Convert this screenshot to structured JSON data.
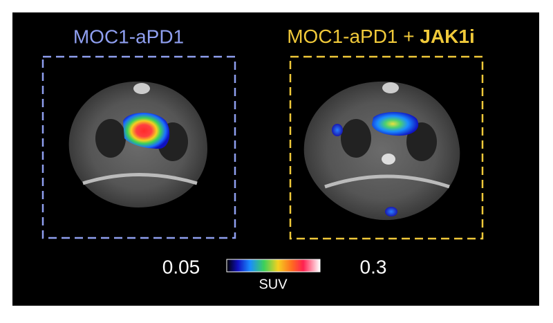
{
  "left_panel": {
    "title": "MOC1-aPD1"
  },
  "right_panel": {
    "title": "MOC1-aPD1 + ",
    "title_bold": "JAK1i"
  },
  "colorbar": {
    "min": 0.05,
    "max": 0.3,
    "label": "SUV"
  }
}
